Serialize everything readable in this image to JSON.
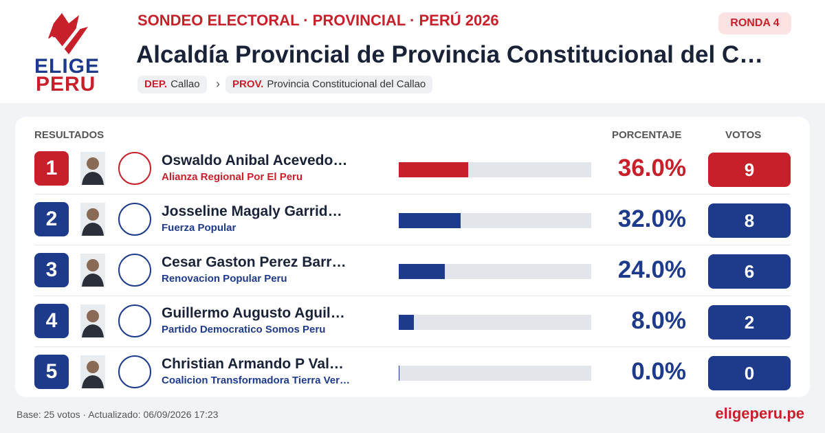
{
  "logo": {
    "line1": "ELIGE",
    "line2": "PERU"
  },
  "header": {
    "kicker": "SONDEO ELECTORAL · PROVINCIAL · PERÚ 2026",
    "title": "Alcaldía Provincial de Provincia Constitucional del C…",
    "round": "RONDA 4",
    "breadcrumb": [
      {
        "label": "DEP.",
        "value": "Callao"
      },
      {
        "label": "PROV.",
        "value": "Provincia Constitucional del Callao"
      }
    ]
  },
  "table": {
    "title": "RESULTADOS",
    "columns": [
      "PORCENTAJE",
      "VOTOS"
    ],
    "leader_color": "#c8202a",
    "color": "#1e3a8a",
    "rows": [
      {
        "rank": 1,
        "name": "Oswaldo Anibal Acevedo…",
        "party": "Alianza Regional Por El Peru",
        "percent": 36,
        "percent_label": "36.0%",
        "votes": 9
      },
      {
        "rank": 2,
        "name": "Josseline Magaly Garrid…",
        "party": "Fuerza Popular",
        "percent": 32,
        "percent_label": "32.0%",
        "votes": 8
      },
      {
        "rank": 3,
        "name": "Cesar Gaston Perez Barr…",
        "party": "Renovacion Popular Peru",
        "percent": 24,
        "percent_label": "24.0%",
        "votes": 6
      },
      {
        "rank": 4,
        "name": "Guillermo Augusto Aguil…",
        "party": "Partido Democratico Somos Peru",
        "percent": 8,
        "percent_label": "8.0%",
        "votes": 2
      },
      {
        "rank": 5,
        "name": "Christian Armando P Val…",
        "party": "Coalicion Transformadora Tierra Ver…",
        "percent": 0,
        "percent_label": "0.0%",
        "votes": 0
      }
    ]
  },
  "footer": {
    "note": "Base: 25 votos · Actualizado: 06/09/2026 17:23",
    "site": "eligeperu.pe"
  }
}
